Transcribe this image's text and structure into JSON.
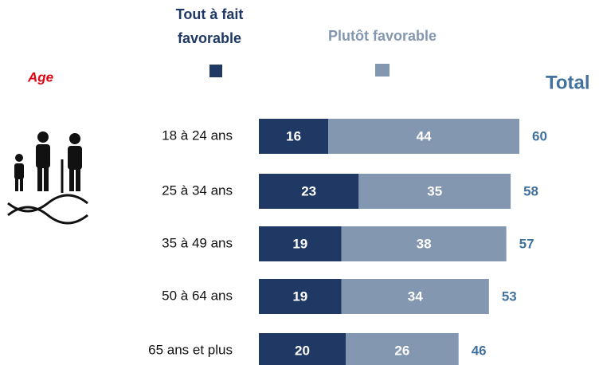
{
  "chart_data": {
    "type": "stacked-bar-horizontal",
    "group_label": "Age",
    "total_label": "Total",
    "categories": [
      "18 à 24 ans",
      "25 à 34 ans",
      "35 à 49 ans",
      "50 à 64 ans",
      "65 ans et plus"
    ],
    "series": [
      {
        "name": "Tout à fait favorable",
        "color": "#1f3864",
        "values": [
          16,
          23,
          19,
          19,
          20
        ]
      },
      {
        "name": "Plutôt favorable",
        "color": "#8497b0",
        "values": [
          44,
          35,
          38,
          34,
          26
        ]
      }
    ],
    "totals": [
      60,
      58,
      57,
      53,
      46
    ]
  }
}
